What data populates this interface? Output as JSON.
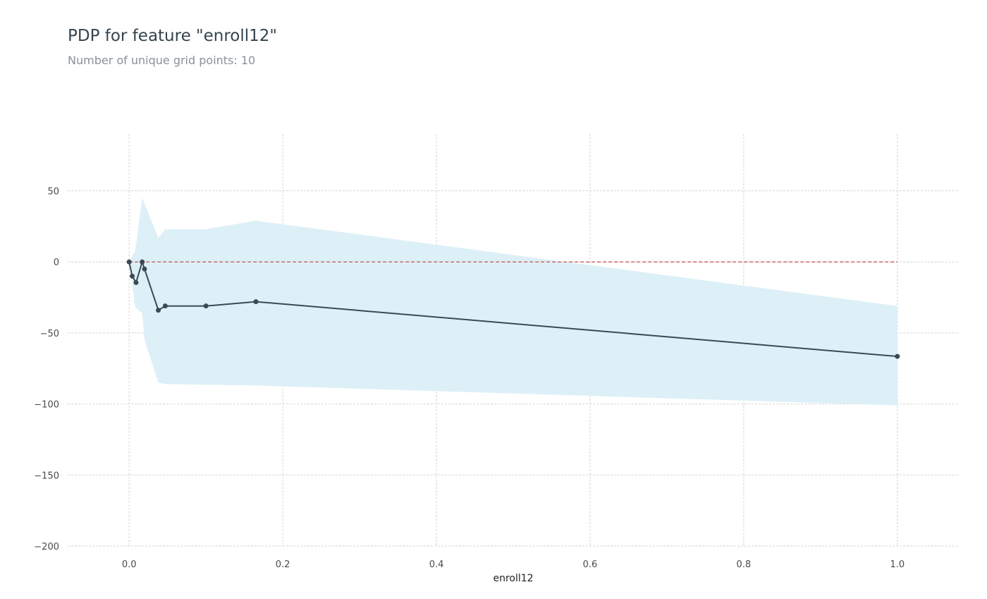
{
  "header": {
    "title": "PDP for feature \"enroll12\"",
    "subtitle": "Number of unique grid points: 10"
  },
  "chart_data": {
    "type": "line",
    "xlabel": "enroll12",
    "ylabel": "",
    "xlim": [
      -0.08,
      1.08
    ],
    "ylim": [
      -200,
      90
    ],
    "xticks": [
      0.0,
      0.2,
      0.4,
      0.6,
      0.8,
      1.0
    ],
    "xtick_labels": [
      "0.0",
      "0.2",
      "0.4",
      "0.6",
      "0.8",
      "1.0"
    ],
    "yticks": [
      50,
      0,
      -50,
      -100,
      -150,
      -200
    ],
    "ytick_labels": [
      "50",
      "0",
      "−50",
      "−100",
      "−150",
      "−200"
    ],
    "grid": true,
    "series": [
      {
        "x": [
          0.0,
          0.004,
          0.009,
          0.017,
          0.02,
          0.038,
          0.047,
          0.1,
          0.165,
          1.0
        ],
        "values": [
          0,
          -10,
          -14.5,
          0,
          -5,
          -34,
          -31,
          -31,
          -28,
          -66.5
        ],
        "color": "#3a4a55"
      }
    ],
    "band": {
      "color": "#ddf0f7",
      "upper": [
        [
          0.0,
          0
        ],
        [
          0.008,
          8
        ],
        [
          0.017,
          45
        ],
        [
          0.038,
          17
        ],
        [
          0.047,
          23
        ],
        [
          0.1,
          23
        ],
        [
          0.165,
          29
        ],
        [
          1.0,
          -31
        ]
      ],
      "lower": [
        [
          0.0,
          0
        ],
        [
          0.008,
          -32
        ],
        [
          0.017,
          -36
        ],
        [
          0.02,
          -55
        ],
        [
          0.038,
          -85
        ],
        [
          0.047,
          -86
        ],
        [
          0.165,
          -87
        ],
        [
          1.0,
          -101
        ]
      ]
    },
    "reference_line": {
      "y": 0,
      "style": "dashed",
      "color": "#c0504d"
    }
  }
}
